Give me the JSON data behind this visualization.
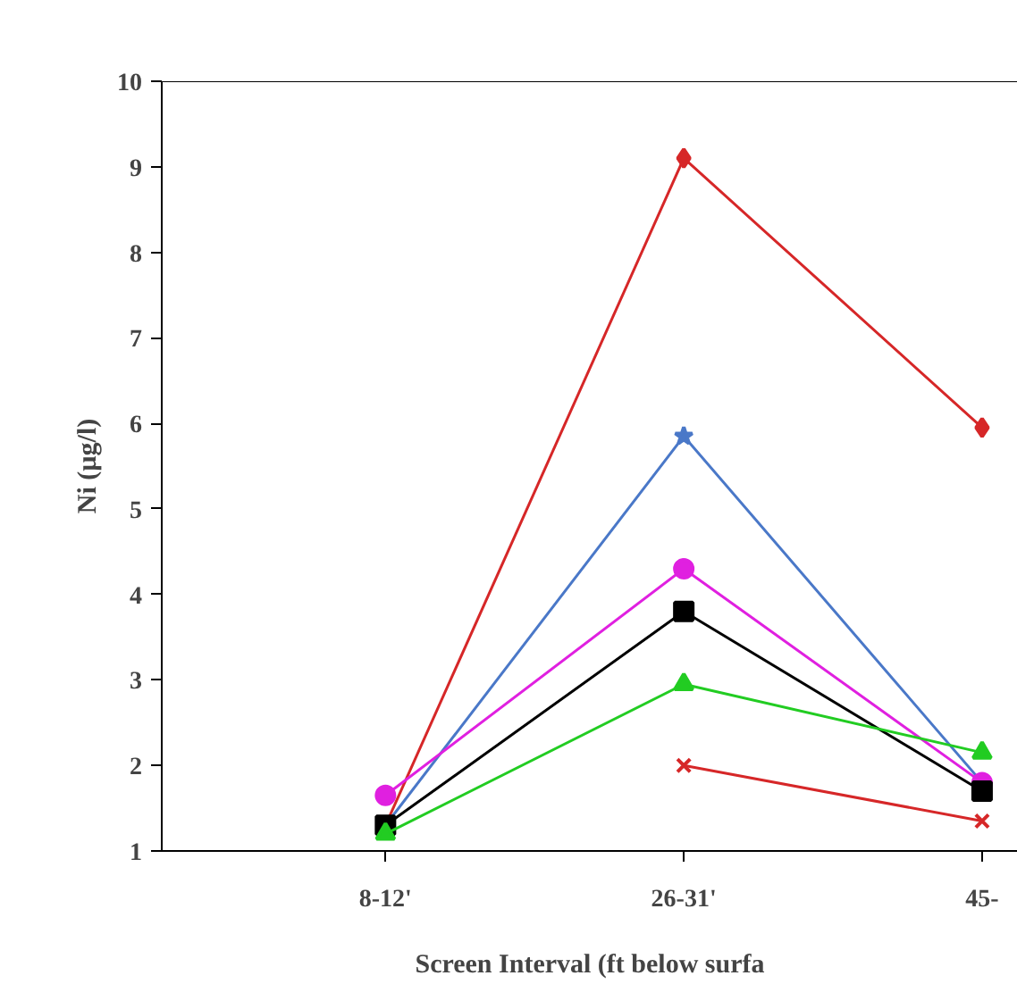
{
  "chart_data": {
    "type": "line",
    "xlabel": "Screen Interval (ft below surfa",
    "ylabel": "Ni (µg/l)",
    "categories": [
      "8-12'",
      "26-31'",
      "45-"
    ],
    "ylim": [
      1,
      10
    ],
    "yticks": [
      1,
      2,
      3,
      4,
      5,
      6,
      7,
      8,
      9,
      10
    ],
    "grid": false,
    "series": [
      {
        "color": "#d62728",
        "marker": "diamond",
        "values": [
          1.3,
          9.1,
          5.95
        ]
      },
      {
        "color": "#4a78c8",
        "marker": "star",
        "values": [
          1.3,
          5.85,
          1.8
        ]
      },
      {
        "color": "#e020e0",
        "marker": "circle",
        "values": [
          1.65,
          4.3,
          1.8
        ]
      },
      {
        "color": "#000000",
        "marker": "square",
        "values": [
          1.3,
          3.8,
          1.7
        ]
      },
      {
        "color": "#22cc22",
        "marker": "triangle",
        "values": [
          1.2,
          2.95,
          2.15
        ]
      },
      {
        "color": "#d62728",
        "marker": "cross",
        "values": [
          null,
          2.0,
          1.35
        ]
      }
    ]
  }
}
